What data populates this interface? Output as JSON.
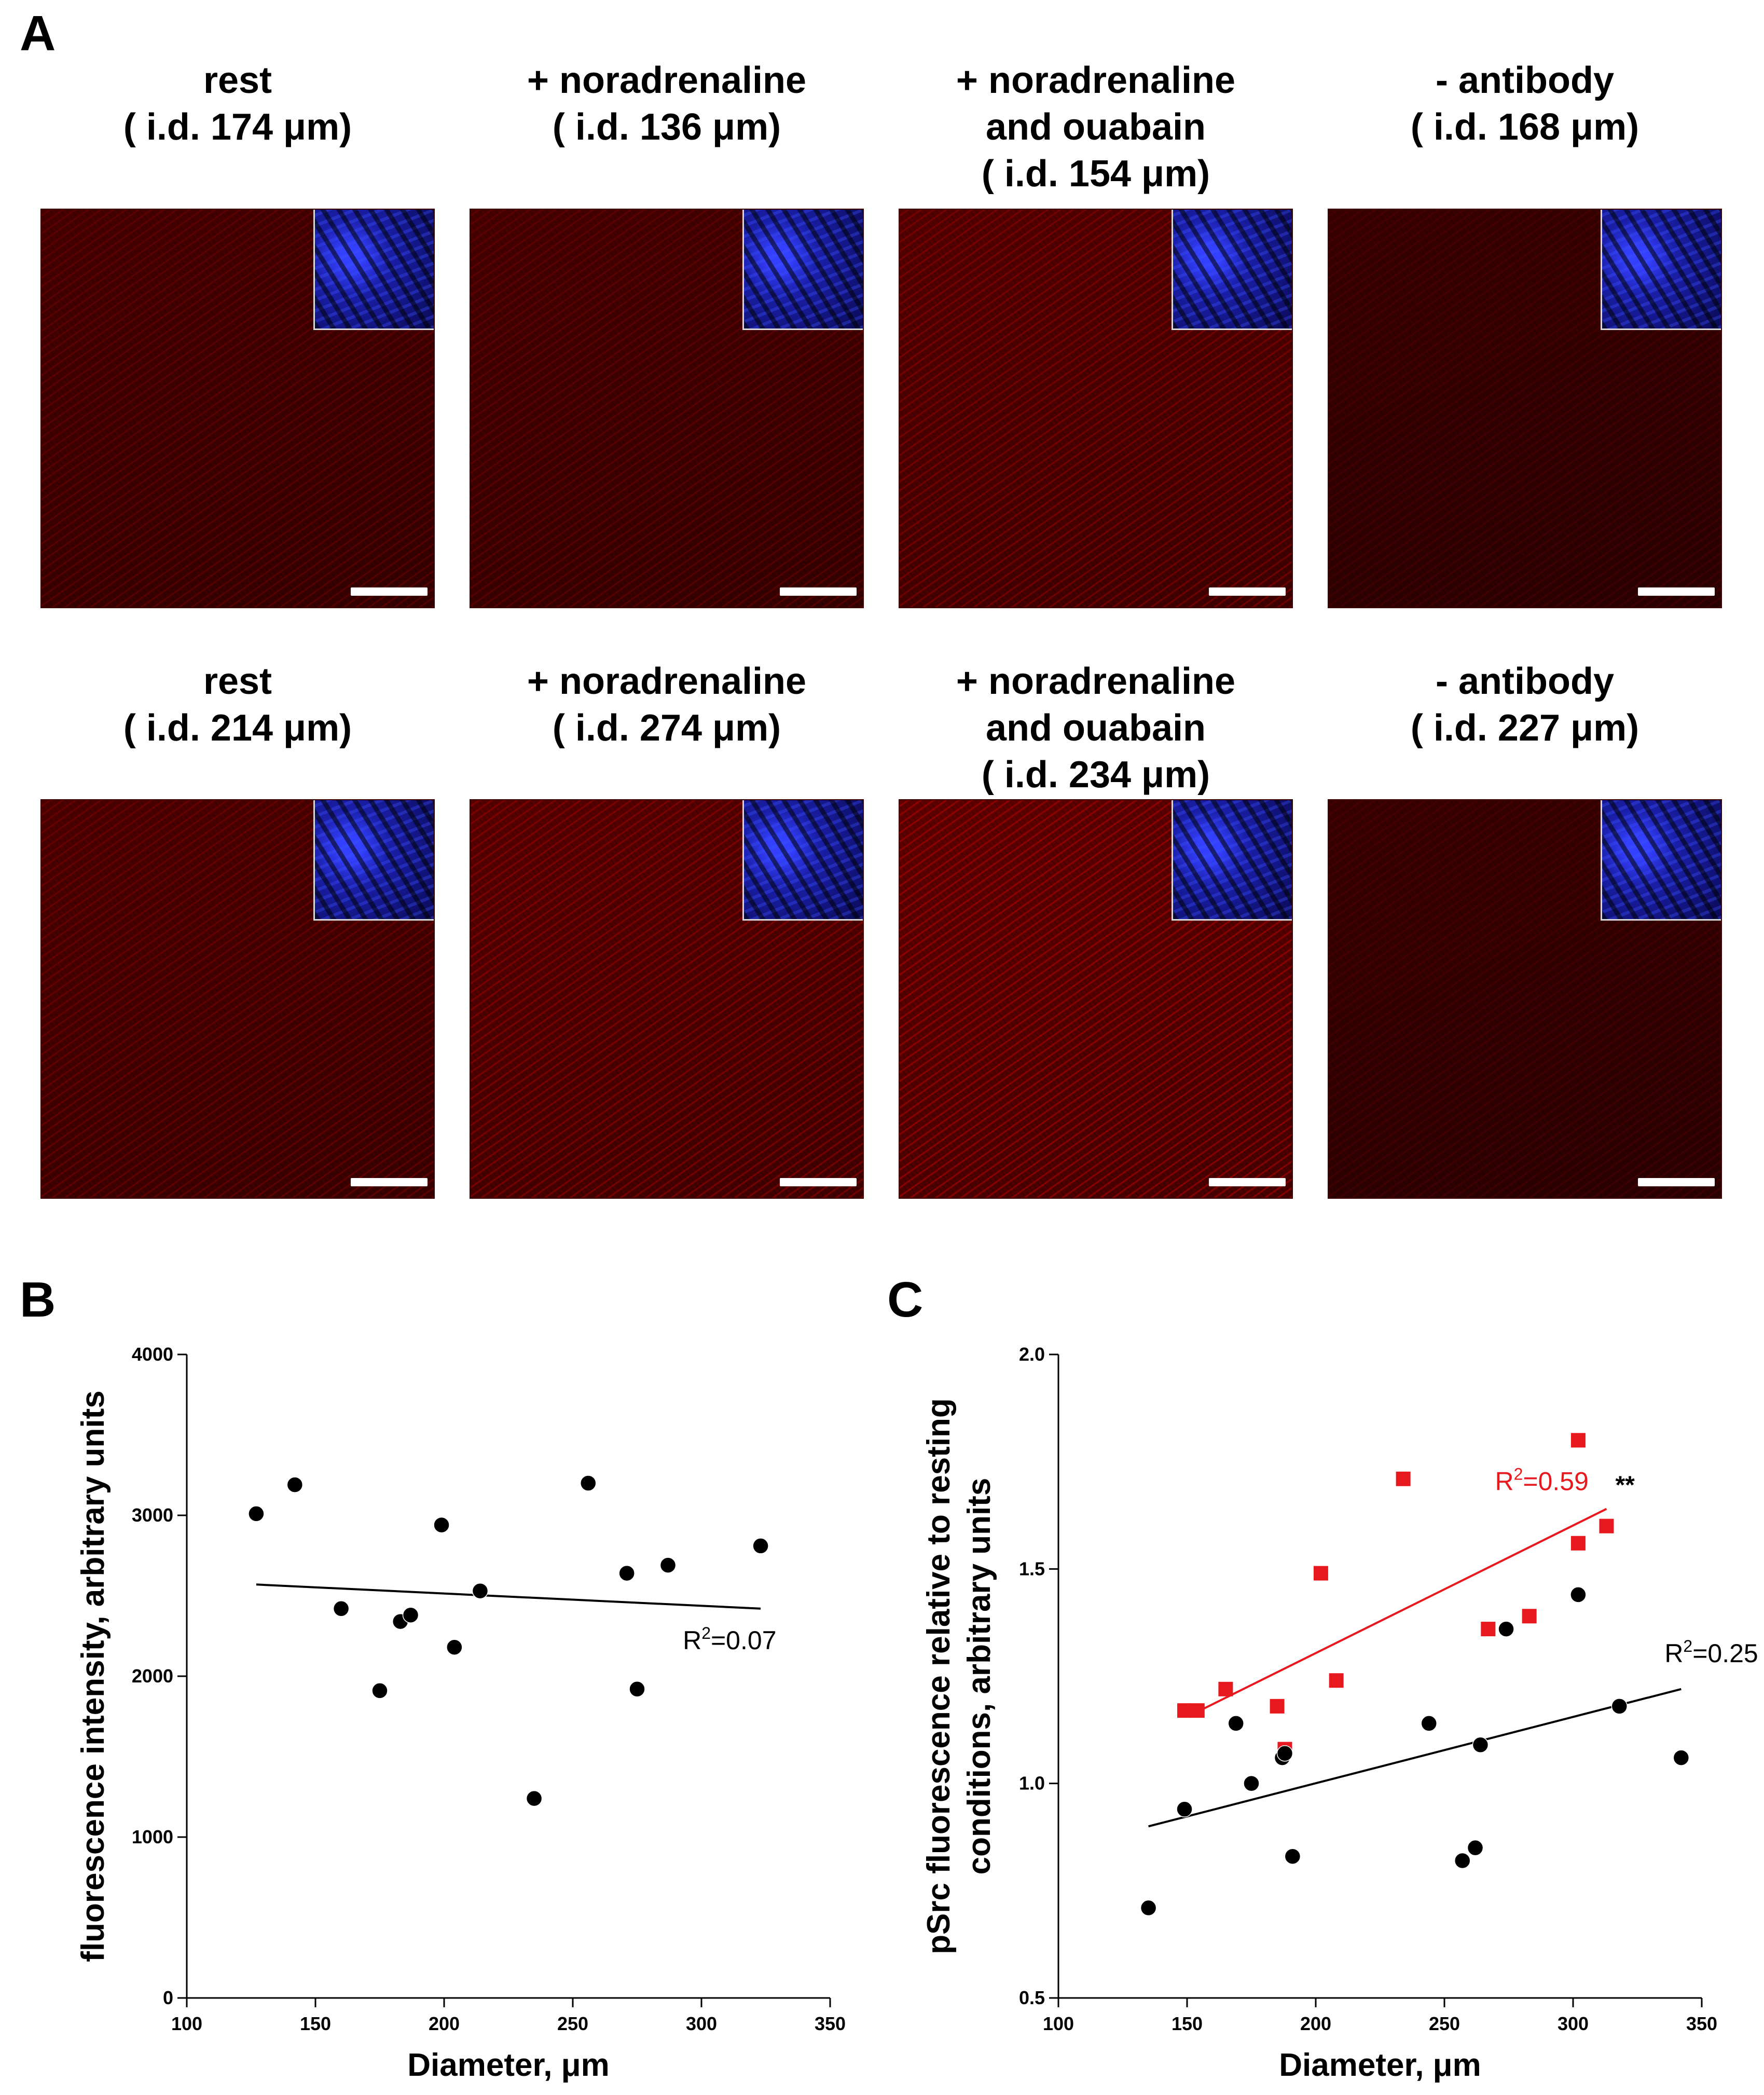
{
  "panels": {
    "a": {
      "letter": "A",
      "rows": [
        [
          {
            "label": [
              "rest",
              "( i.d. 174 μm)"
            ],
            "intensity": 0.55
          },
          {
            "label": [
              "+ noradrenaline",
              "( i.d. 136 μm)"
            ],
            "intensity": 0.55
          },
          {
            "label": [
              "+ noradrenaline",
              "and ouabain",
              "( i.d. 154 μm)"
            ],
            "intensity": 0.8
          },
          {
            "label": [
              "- antibody",
              "( i.d. 168 μm)"
            ],
            "intensity": 0.3
          }
        ],
        [
          {
            "label": [
              "rest",
              "( i.d. 214 μm)"
            ],
            "intensity": 0.65
          },
          {
            "label": [
              "+ noradrenaline",
              "( i.d. 274 μm)"
            ],
            "intensity": 0.85
          },
          {
            "label": [
              "+ noradrenaline",
              "and ouabain",
              "( i.d. 234 μm)"
            ],
            "intensity": 1.0
          },
          {
            "label": [
              "- antibody",
              "( i.d. 227 μm)"
            ],
            "intensity": 0.3
          }
        ]
      ]
    },
    "b": {
      "letter": "B"
    },
    "c": {
      "letter": "C"
    }
  },
  "chart_data": [
    {
      "id": "B",
      "type": "scatter",
      "xlabel": "Diameter, μm",
      "ylabel": "fluorescence intensity, arbitrary units",
      "xlim": [
        100,
        350
      ],
      "ylim": [
        0,
        4000
      ],
      "xticks": [
        100,
        150,
        200,
        250,
        300,
        350
      ],
      "yticks": [
        0,
        1000,
        2000,
        3000,
        4000
      ],
      "series": [
        {
          "color": "#000000",
          "marker": "circle",
          "points": [
            [
              127,
              3010
            ],
            [
              142,
              3190
            ],
            [
              160,
              2420
            ],
            [
              175,
              1910
            ],
            [
              183,
              2340
            ],
            [
              187,
              2380
            ],
            [
              199,
              2940
            ],
            [
              204,
              2180
            ],
            [
              214,
              2530
            ],
            [
              235,
              1240
            ],
            [
              256,
              3200
            ],
            [
              271,
              2640
            ],
            [
              275,
              1920
            ],
            [
              287,
              2690
            ],
            [
              323,
              2810
            ]
          ],
          "fit": {
            "x": [
              127,
              323
            ],
            "y": [
              2570,
              2420
            ],
            "label": "R2=0.07",
            "color": "#000000"
          }
        }
      ]
    },
    {
      "id": "C",
      "type": "scatter",
      "xlabel": "Diameter, μm",
      "ylabel": [
        "pSrc fluorescence relative to resting",
        "conditions, arbitrary units"
      ],
      "xlim": [
        100,
        350
      ],
      "ylim": [
        0.5,
        2.0
      ],
      "xticks": [
        100,
        150,
        200,
        250,
        300,
        350
      ],
      "yticks": [
        0.5,
        1.0,
        1.5,
        2.0
      ],
      "series": [
        {
          "color": "#e8191e",
          "marker": "square",
          "points": [
            [
              149,
              1.17
            ],
            [
              154,
              1.17
            ],
            [
              165,
              1.22
            ],
            [
              185,
              1.18
            ],
            [
              188,
              1.08
            ],
            [
              202,
              1.49
            ],
            [
              208,
              1.24
            ],
            [
              234,
              1.71
            ],
            [
              267,
              1.36
            ],
            [
              283,
              1.39
            ],
            [
              302,
              1.8
            ],
            [
              302,
              1.56
            ],
            [
              313,
              1.6
            ]
          ],
          "fit": {
            "x": [
              155,
              313
            ],
            "y": [
              1.17,
              1.64
            ],
            "label": "R2=0.59",
            "stars": "**",
            "color": "#e8191e"
          }
        },
        {
          "color": "#000000",
          "marker": "circle",
          "points": [
            [
              135,
              0.71
            ],
            [
              149,
              0.94
            ],
            [
              169,
              1.14
            ],
            [
              175,
              1.0
            ],
            [
              187,
              1.06
            ],
            [
              188,
              1.07
            ],
            [
              191,
              0.83
            ],
            [
              244,
              1.14
            ],
            [
              257,
              0.82
            ],
            [
              262,
              0.85
            ],
            [
              264,
              1.09
            ],
            [
              274,
              1.36
            ],
            [
              302,
              1.44
            ],
            [
              318,
              1.18
            ],
            [
              342,
              1.06
            ]
          ],
          "fit": {
            "x": [
              135,
              342
            ],
            "y": [
              0.9,
              1.22
            ],
            "label": "R2=0.25",
            "color": "#000000"
          }
        }
      ]
    }
  ]
}
